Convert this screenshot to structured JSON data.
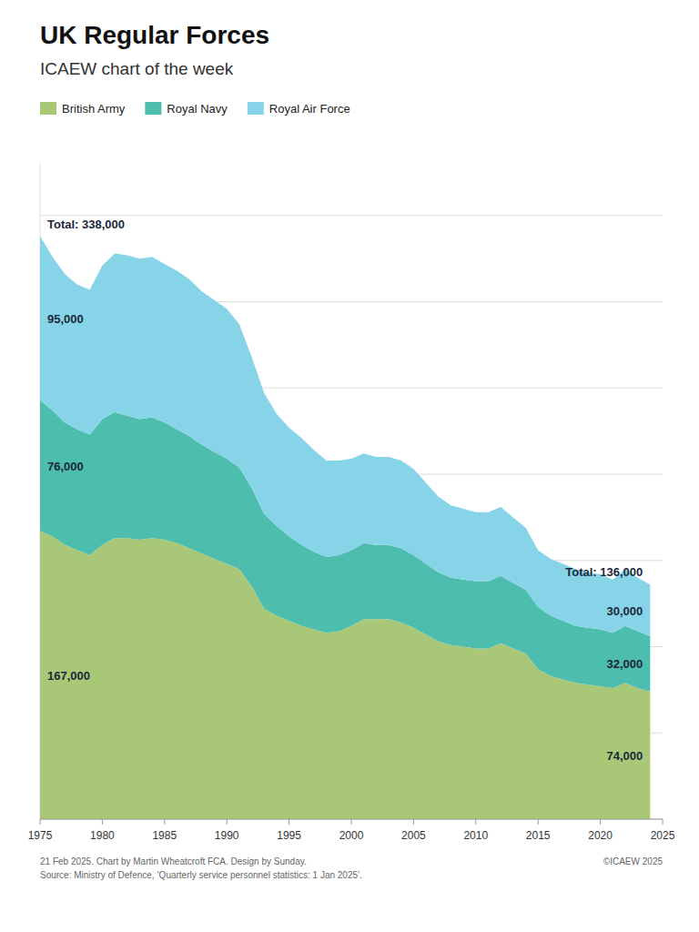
{
  "chart_data": {
    "type": "area",
    "stacked": true,
    "title": "UK Regular Forces",
    "subtitle": "ICAEW chart of the week",
    "x": [
      1975,
      1976,
      1977,
      1978,
      1979,
      1980,
      1981,
      1982,
      1983,
      1984,
      1985,
      1986,
      1987,
      1988,
      1989,
      1990,
      1991,
      1992,
      1993,
      1994,
      1995,
      1996,
      1997,
      1998,
      1999,
      2000,
      2001,
      2002,
      2003,
      2004,
      2005,
      2006,
      2007,
      2008,
      2009,
      2010,
      2011,
      2012,
      2013,
      2014,
      2015,
      2016,
      2017,
      2018,
      2019,
      2020,
      2021,
      2022,
      2023,
      2024
    ],
    "series": [
      {
        "name": "British Army",
        "color": "#a8c878",
        "values": [
          167000,
          164000,
          159000,
          156000,
          153000,
          159000,
          163000,
          163000,
          162000,
          163000,
          162000,
          160000,
          157000,
          154000,
          151000,
          148000,
          145000,
          135000,
          122000,
          118000,
          115000,
          112000,
          110000,
          108000,
          109000,
          112000,
          116000,
          116000,
          116000,
          114000,
          111000,
          107000,
          103000,
          101000,
          100000,
          99000,
          99000,
          102000,
          99000,
          96000,
          87000,
          83000,
          81000,
          79000,
          78000,
          77000,
          76000,
          79000,
          76000,
          74000
        ]
      },
      {
        "name": "Royal Navy",
        "color": "#4dbdad",
        "values": [
          76000,
          73000,
          71000,
          70000,
          70000,
          73000,
          73000,
          71000,
          70000,
          70000,
          68000,
          66000,
          65000,
          63000,
          62000,
          61000,
          59000,
          57000,
          55000,
          52000,
          49000,
          47000,
          45000,
          44000,
          44000,
          44000,
          44000,
          43000,
          43000,
          43000,
          42000,
          41000,
          40000,
          39000,
          39000,
          39000,
          39000,
          39000,
          38000,
          37000,
          36000,
          35000,
          34000,
          33000,
          33000,
          33000,
          32000,
          33000,
          33000,
          32000
        ]
      },
      {
        "name": "Royal Air Force",
        "color": "#87d4e8",
        "values": [
          95000,
          89000,
          86000,
          84000,
          84000,
          89000,
          92000,
          93000,
          93000,
          93000,
          92000,
          92000,
          91000,
          89000,
          88000,
          87000,
          83000,
          76000,
          70000,
          65000,
          63000,
          62000,
          59000,
          56000,
          55000,
          53000,
          52000,
          51000,
          51000,
          51000,
          50000,
          47000,
          44000,
          42000,
          41000,
          40000,
          40000,
          40000,
          38000,
          36000,
          33000,
          33000,
          33000,
          33000,
          32000,
          32000,
          31000,
          33000,
          31000,
          30000
        ]
      }
    ],
    "xlim": [
      1975,
      2025
    ],
    "ylim": [
      0,
      380000
    ],
    "xticks": [
      1975,
      1980,
      1985,
      1990,
      1995,
      2000,
      2005,
      2010,
      2015,
      2020,
      2025
    ],
    "yticks": [
      0,
      50000,
      100000,
      150000,
      200000,
      250000,
      300000,
      350000
    ],
    "grid": true,
    "tick_labels": "x",
    "legend": "upper left",
    "annotations": [
      {
        "text": "167,000",
        "x": 1975,
        "series": "British Army"
      },
      {
        "text": "76,000",
        "x": 1975,
        "series": "Royal Navy"
      },
      {
        "text": "95,000",
        "x": 1975,
        "series": "Royal Air Force"
      },
      {
        "text": "Total: 338,000",
        "x": 1975
      },
      {
        "text": "74,000",
        "x": 2024,
        "series": "British Army"
      },
      {
        "text": "32,000",
        "x": 2024,
        "series": "Royal Navy"
      },
      {
        "text": "30,000",
        "x": 2024,
        "series": "Royal Air Force"
      },
      {
        "text": "Total: 136,000",
        "x": 2024
      }
    ],
    "footer_left": "21 Feb 2025.   Chart by Martin Wheatcroft FCA. Design by Sunday.\nSource: Ministry of Defence, ‘Quarterly service personnel statistics: 1 Jan 2025’.",
    "footer_right": "©ICAEW 2025"
  }
}
